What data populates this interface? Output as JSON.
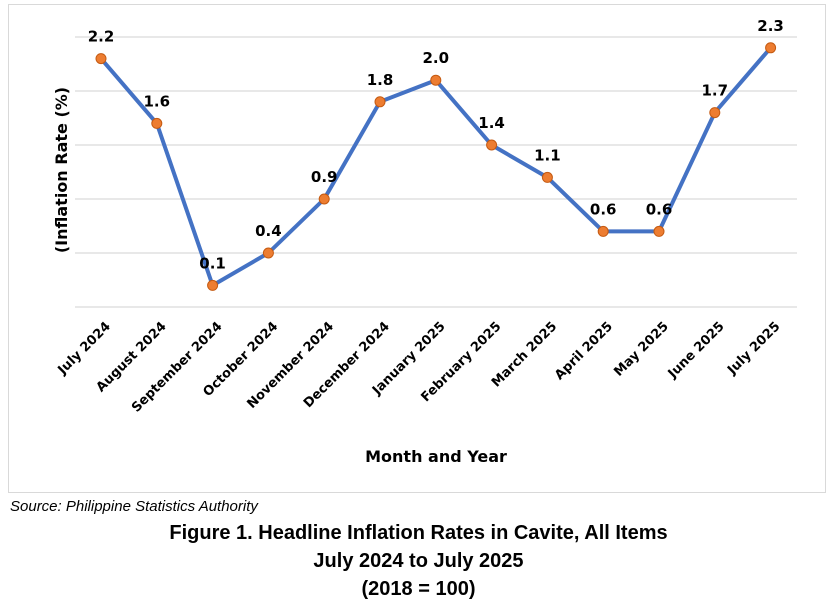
{
  "chart_data": {
    "type": "line",
    "categories": [
      "July 2024",
      "August 2024",
      "September 2024",
      "October 2024",
      "November 2024",
      "December 2024",
      "January 2025",
      "February 2025",
      "March 2025",
      "April 2025",
      "May 2025",
      "June 2025",
      "July 2025"
    ],
    "values": [
      2.2,
      1.6,
      0.1,
      0.4,
      0.9,
      1.8,
      2.0,
      1.4,
      1.1,
      0.6,
      0.6,
      1.7,
      2.3
    ],
    "data_labels": [
      "2.2",
      "1.6",
      "0.1",
      "0.4",
      "0.9",
      "1.8",
      "2.0",
      "1.4",
      "1.1",
      "0.6",
      "0.6",
      "1.7",
      "2.3"
    ],
    "xlabel": "Month and Year",
    "ylabel": "(Inflation Rate (%)",
    "ylim": [
      -0.1,
      2.4
    ],
    "grid": true,
    "line_color": "#4472c4",
    "marker_color": "#ed7d31"
  },
  "source": "Source: Philippine Statistics Authority",
  "caption": {
    "line1": "Figure 1. Headline Inflation Rates in Cavite, All Items",
    "line2": "July 2024 to July 2025",
    "line3": "(2018 = 100)"
  }
}
